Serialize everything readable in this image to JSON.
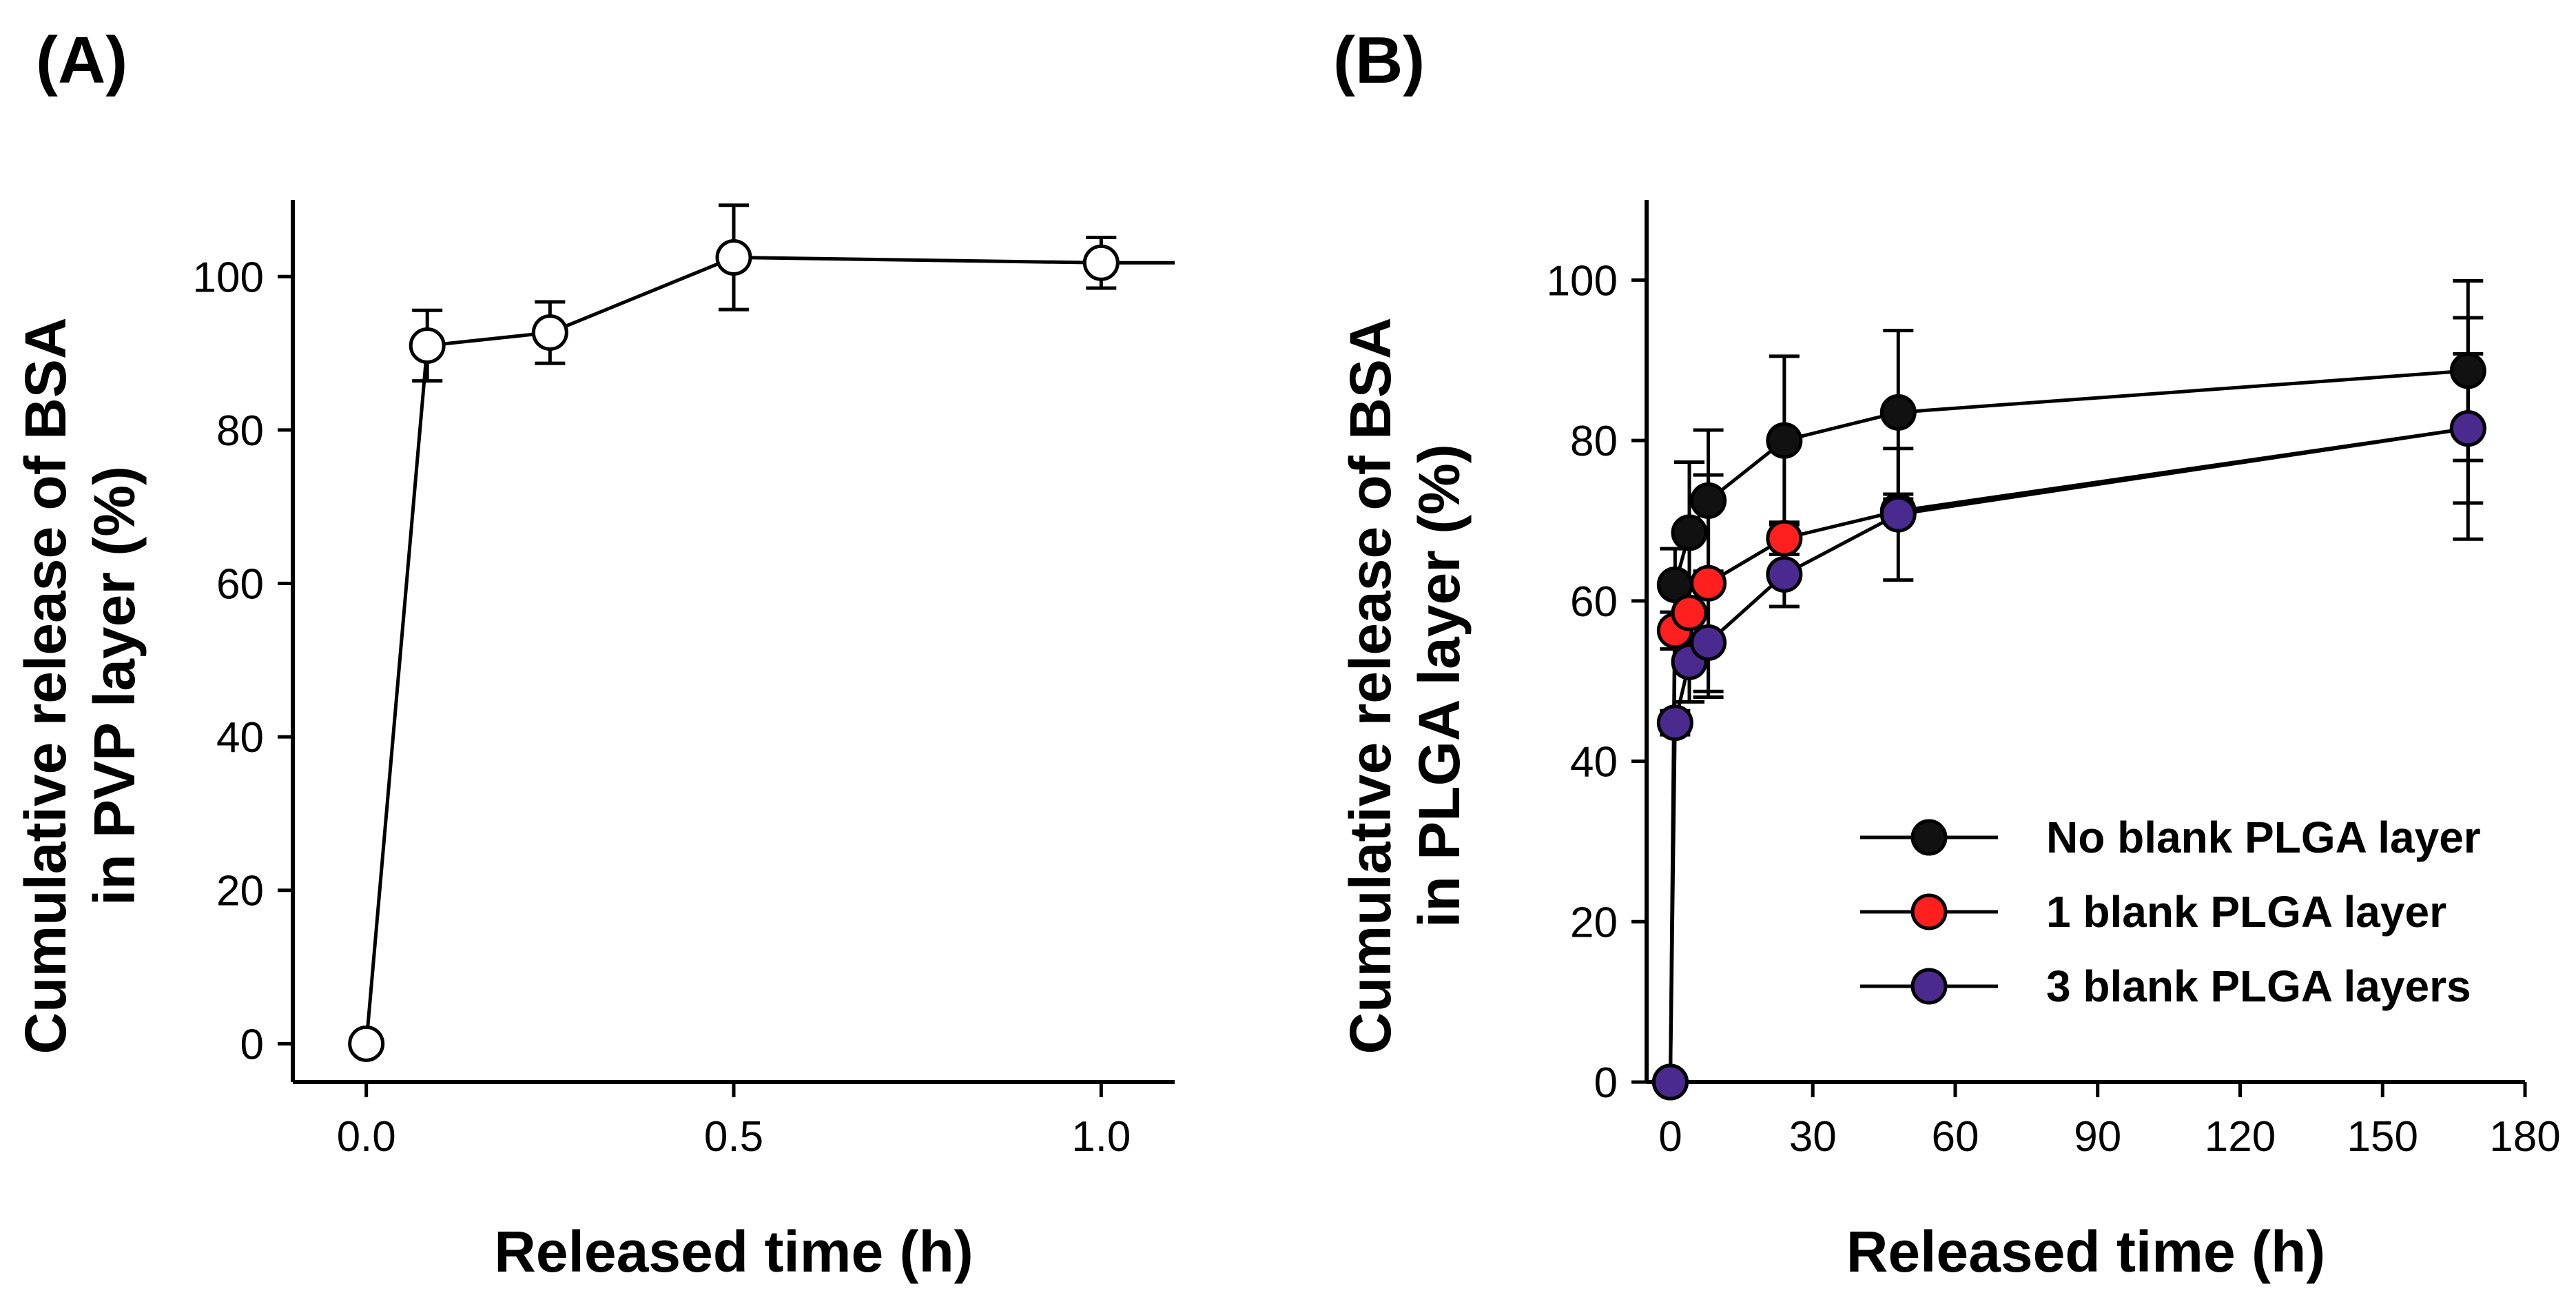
{
  "chart_data": [
    {
      "panel": "(A)",
      "type": "line",
      "title": "",
      "xlabel": "Released time (h)",
      "ylabel_lines": [
        "Cumulative release of BSA",
        "in PVP layer (%)"
      ],
      "xlim": [
        -0.1,
        1.1
      ],
      "ylim": [
        -5,
        110
      ],
      "xticks": [
        0.0,
        0.5,
        1.0
      ],
      "xtick_labels": [
        "0.0",
        "0.5",
        "1.0"
      ],
      "yticks": [
        0,
        20,
        40,
        60,
        80,
        100
      ],
      "ytick_labels": [
        "0",
        "20",
        "40",
        "60",
        "80",
        "100"
      ],
      "grid": false,
      "series": [
        {
          "name": "PVP layer",
          "marker_color": "#ffffff",
          "x": [
            0,
            0.083,
            0.25,
            0.5,
            1.0
          ],
          "y": [
            0,
            91,
            92.7,
            102.5,
            101.8
          ],
          "err": [
            0,
            4.6,
            4.0,
            6.8,
            3.3
          ],
          "line_extends_to_x": 1.1
        }
      ]
    },
    {
      "panel": "(B)",
      "type": "line",
      "title": "",
      "xlabel": "Released time (h)",
      "ylabel_lines": [
        "Cumulative release of BSA",
        "in PLGA layer (%)"
      ],
      "xlim": [
        -5,
        180
      ],
      "ylim": [
        0,
        110
      ],
      "xticks": [
        0,
        30,
        60,
        90,
        120,
        150,
        180
      ],
      "xtick_labels": [
        "0",
        "30",
        "60",
        "90",
        "120",
        "150",
        "180"
      ],
      "yticks": [
        0,
        20,
        40,
        60,
        80,
        100
      ],
      "ytick_labels": [
        "0",
        "20",
        "40",
        "60",
        "80",
        "100"
      ],
      "grid": false,
      "legend_position": "lower-right",
      "series": [
        {
          "name": "No blank PLGA layer",
          "marker_color": "#111111",
          "x": [
            0,
            1,
            4,
            8,
            24,
            48,
            168
          ],
          "y": [
            0,
            62,
            68.5,
            72.5,
            80,
            83.5,
            88.7
          ],
          "err": [
            0,
            4.5,
            8.8,
            8.8,
            10.5,
            10.2,
            11.2
          ]
        },
        {
          "name": "1 blank PLGA layer",
          "marker_color": "#ff1f1f",
          "x": [
            0,
            1,
            4,
            8,
            24,
            48,
            168
          ],
          "y": [
            0,
            56.3,
            58.5,
            62.2,
            67.8,
            71.2,
            81.5
          ],
          "err": [
            0,
            2.3,
            2.8,
            13.5,
            2.0,
            1.5,
            13.8
          ]
        },
        {
          "name": "3 blank PLGA layers",
          "marker_color": "#4b2a8f",
          "x": [
            0,
            1,
            4,
            8,
            24,
            48,
            168
          ],
          "y": [
            0,
            44.8,
            52.4,
            54.8,
            63.3,
            70.8,
            81.5
          ],
          "err": [
            0,
            1.5,
            5.0,
            6.8,
            4.0,
            8.2,
            9.3
          ]
        }
      ]
    }
  ]
}
